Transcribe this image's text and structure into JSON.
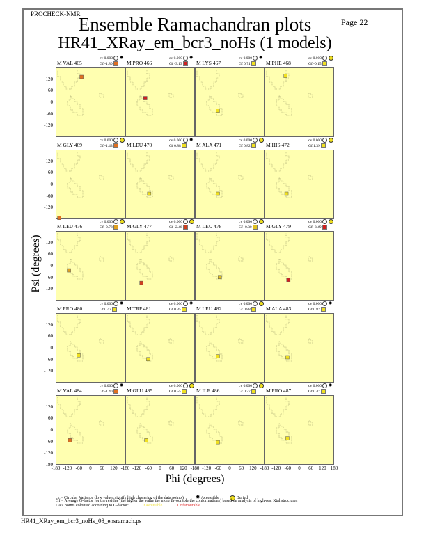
{
  "header": {
    "program": "PROCHECK-NMR",
    "page": "Page 22",
    "title": "Ensemble Ramachandran plots",
    "subtitle": "HR41_XRay_em_bcr3_noHs (1 models)"
  },
  "axes": {
    "xlabel": "Phi (degrees)",
    "ylabel": "Psi (degrees)",
    "yticks": [
      "120",
      "60",
      "0",
      "-60",
      "-120",
      "-180"
    ],
    "xticks": [
      "-180",
      "-120",
      "-60",
      "0",
      "60",
      "120",
      "180"
    ]
  },
  "legend": {
    "line1": "cv = Circular Variance (low values signify high clustering of the data points).",
    "accessible": "Accessible",
    "buried": "Buried",
    "line2": "Gf = Average G-factor for the residue (the higher the value the more favourable the conformations) based on analysis of high-res. Xtal structures",
    "line3": "Data points coloured according to G-factor:",
    "favourable": "Favourable",
    "unfavourable": "Unfavourable",
    "favourable_color": "#ffff66",
    "unfavourable_color": "#e03030"
  },
  "footer": "HR41_XRay_em_bcr3_noHs_08_ensramach.ps",
  "colors": {
    "panel_bg": "#ffffb0",
    "favourable": "#f0e020",
    "mid": "#e08020",
    "unfavourable": "#d02020"
  },
  "chart_data": {
    "type": "scatter",
    "title": "Ensemble Ramachandran plots",
    "xlabel": "Phi (degrees)",
    "ylabel": "Psi (degrees)",
    "xlim": [
      -180,
      180
    ],
    "ylim": [
      -180,
      180
    ],
    "panels": [
      {
        "residue": "M VAL 465",
        "cv": "cv 0.000",
        "gf": "Gf -1.80",
        "access": "accessible",
        "phi": -50,
        "psi": 135,
        "color": "#e07020"
      },
      {
        "residue": "M PRO 466",
        "cv": "cv 0.000",
        "gf": "Gf -3.13",
        "access": "accessible",
        "phi": -80,
        "psi": 25,
        "color": "#d02020"
      },
      {
        "residue": "M LYS 467",
        "cv": "cv 0.000",
        "gf": "Gf 0.71",
        "access": "accessible",
        "phi": -65,
        "psi": -40,
        "color": "#f0e020"
      },
      {
        "residue": "M PHE 468",
        "cv": "cv 0.000",
        "gf": "Gf -0.15",
        "access": "buried",
        "phi": -75,
        "psi": 140,
        "color": "#f0e020"
      },
      {
        "residue": "M GLY 469",
        "cv": "cv 0.000",
        "gf": "Gf -1.43",
        "access": "buried",
        "phi": -165,
        "psi": -170,
        "color": "#e07020"
      },
      {
        "residue": "M LEU 470",
        "cv": "cv 0.000",
        "gf": "Gf 0.88",
        "access": "accessible",
        "phi": -60,
        "psi": -45,
        "color": "#f0e020"
      },
      {
        "residue": "M ALA 471",
        "cv": "cv 0.000",
        "gf": "Gf 0.82",
        "access": "buried",
        "phi": -65,
        "psi": -45,
        "color": "#f0e020"
      },
      {
        "residue": "M HIS 472",
        "cv": "cv 0.000",
        "gf": "Gf 1.39",
        "access": "buried",
        "phi": -70,
        "psi": -45,
        "color": "#f0e020"
      },
      {
        "residue": "M LEU 476",
        "cv": "cv 0.000",
        "gf": "Gf -0.78",
        "access": "buried",
        "phi": -115,
        "psi": -20,
        "color": "#e0a020"
      },
      {
        "residue": "M GLY 477",
        "cv": "cv 0.000",
        "gf": "Gf -2.46",
        "access": "buried",
        "phi": -100,
        "psi": -85,
        "color": "#d04020"
      },
      {
        "residue": "M LEU 478",
        "cv": "cv 0.000",
        "gf": "Gf -0.30",
        "access": "buried",
        "phi": -55,
        "psi": -55,
        "color": "#e0c020"
      },
      {
        "residue": "M GLY 479",
        "cv": "cv 0.000",
        "gf": "Gf -3.49",
        "access": "buried",
        "phi": -60,
        "psi": -70,
        "color": "#d02020"
      },
      {
        "residue": "M PRO 480",
        "cv": "cv 0.000",
        "gf": "Gf 0.42",
        "access": "accessible",
        "phi": -65,
        "psi": -35,
        "color": "#f0e020"
      },
      {
        "residue": "M TRP 481",
        "cv": "cv 0.000",
        "gf": "Gf 0.35",
        "access": "accessible",
        "phi": -65,
        "psi": -55,
        "color": "#f0e020"
      },
      {
        "residue": "M LEU 482",
        "cv": "cv 0.000",
        "gf": "Gf 0.88",
        "access": "buried",
        "phi": -65,
        "psi": -40,
        "color": "#f0e020"
      },
      {
        "residue": "M ALA 483",
        "cv": "cv 0.000",
        "gf": "Gf 0.82",
        "access": "accessible",
        "phi": -65,
        "psi": -45,
        "color": "#f0e020"
      },
      {
        "residue": "M VAL 484",
        "cv": "cv 0.000",
        "gf": "Gf -1.40",
        "access": "accessible",
        "phi": -110,
        "psi": -50,
        "color": "#e07020"
      },
      {
        "residue": "M GLU 485",
        "cv": "cv 0.000",
        "gf": "Gf 0.55",
        "access": "buried",
        "phi": -75,
        "psi": -50,
        "color": "#f0e020"
      },
      {
        "residue": "M ILE 486",
        "cv": "cv 0.000",
        "gf": "Gf 0.27",
        "access": "buried",
        "phi": -65,
        "psi": -60,
        "color": "#f0e020"
      },
      {
        "residue": "M PRO 487",
        "cv": "cv 0.000",
        "gf": "Gf 0.47",
        "access": "accessible",
        "phi": -65,
        "psi": -40,
        "color": "#f0e020"
      }
    ]
  }
}
